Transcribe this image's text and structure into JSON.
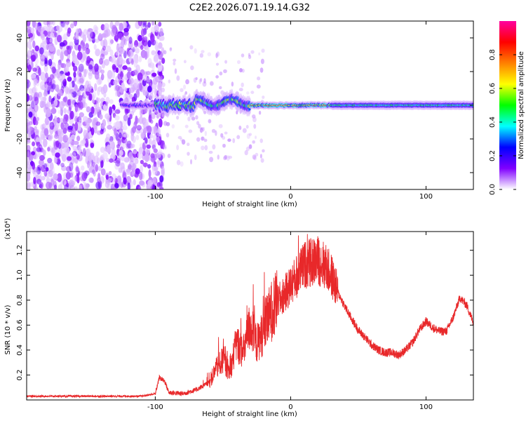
{
  "title": "C2E2.2026.071.19.14.G32",
  "colors": {
    "line": "#e8282a",
    "axis": "#000000",
    "background": "#ffffff"
  },
  "chart_data": [
    {
      "type": "heatmap",
      "title": "C2E2.2026.071.19.14.G32",
      "xlabel": "Height of straight line (km)",
      "ylabel": "Frequency (Hz)",
      "xlim": [
        -195,
        135
      ],
      "ylim": [
        -50,
        50
      ],
      "xticks": [
        -100,
        0,
        100
      ],
      "xtick_labels": [
        "-100",
        "0",
        "100"
      ],
      "yticks": [
        -40,
        -20,
        0,
        20,
        40
      ],
      "ytick_labels": [
        "-40",
        "-20",
        "0",
        "20",
        "40"
      ],
      "colorbar": {
        "label": "Normalized spectral amplitude",
        "range": [
          0,
          1
        ],
        "ticks": [
          0.0,
          0.2,
          0.4,
          0.6,
          0.8
        ],
        "tick_labels": [
          "0.0",
          "0.2",
          "0.4",
          "0.6",
          "0.8"
        ],
        "colormap": [
          "#ffffff",
          "#8000ff",
          "#0000ff",
          "#00ffff",
          "#00ff00",
          "#ffff00",
          "#ff8000",
          "#ff0000",
          "#ff00a0"
        ]
      },
      "regions": [
        {
          "name": "noise-band",
          "x_range": [
            -195,
            -100
          ],
          "freq_range": [
            -50,
            50
          ],
          "amplitude": 0.1
        },
        {
          "name": "signal-ridge",
          "x_range": [
            -125,
            135
          ],
          "freq_center": 0,
          "amplitude_peak": 0.9
        }
      ]
    },
    {
      "type": "line",
      "xlabel": "Height of straight line (km)",
      "ylabel": "SNR (10 * v/v)",
      "y_scale_label": "(x10⁴)",
      "xlim": [
        -195,
        135
      ],
      "ylim": [
        0,
        1.35
      ],
      "xticks": [
        -100,
        0,
        100
      ],
      "xtick_labels": [
        "-100",
        "0",
        "100"
      ],
      "yticks": [
        0.2,
        0.4,
        0.6,
        0.8,
        1.0,
        1.2
      ],
      "ytick_labels": [
        "0.2",
        "0.4",
        "0.6",
        "0.8",
        "1.0",
        "1.2"
      ],
      "series": [
        {
          "name": "SNR",
          "x": [
            -195,
            -150,
            -110,
            -100,
            -97,
            -93,
            -90,
            -80,
            -70,
            -60,
            -55,
            -50,
            -45,
            -40,
            -35,
            -30,
            -25,
            -20,
            -15,
            -10,
            -5,
            0,
            5,
            10,
            15,
            20,
            25,
            30,
            35,
            40,
            45,
            50,
            55,
            60,
            65,
            70,
            75,
            80,
            85,
            90,
            95,
            100,
            105,
            110,
            115,
            120,
            125,
            130,
            135
          ],
          "values": [
            0.03,
            0.03,
            0.03,
            0.05,
            0.18,
            0.15,
            0.06,
            0.05,
            0.08,
            0.14,
            0.25,
            0.32,
            0.22,
            0.46,
            0.38,
            0.6,
            0.45,
            0.55,
            0.7,
            0.78,
            0.84,
            0.92,
            1.0,
            1.08,
            1.1,
            1.12,
            1.08,
            1.0,
            0.86,
            0.75,
            0.65,
            0.56,
            0.5,
            0.44,
            0.4,
            0.38,
            0.38,
            0.36,
            0.4,
            0.46,
            0.56,
            0.63,
            0.58,
            0.55,
            0.55,
            0.66,
            0.82,
            0.76,
            0.62
          ]
        }
      ]
    }
  ]
}
